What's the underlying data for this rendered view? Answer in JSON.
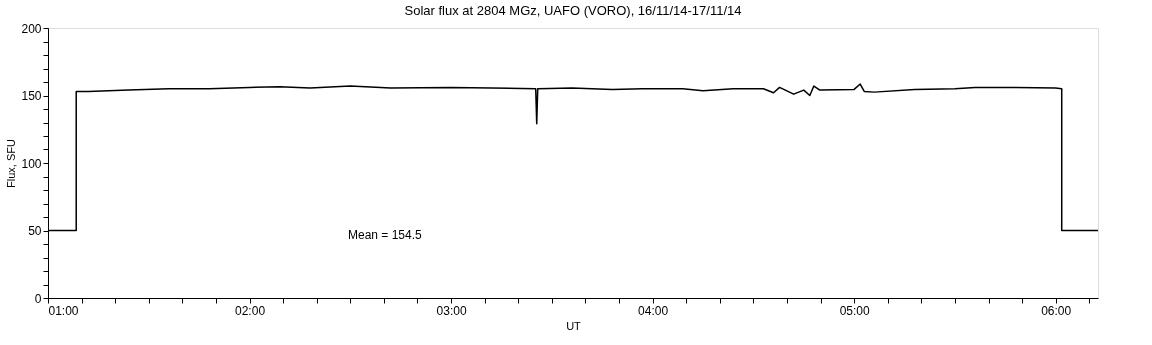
{
  "chart_data": {
    "type": "line",
    "title": "Solar flux at 2804 MGz, UAFO (VORO),  16/11/14-17/11/14",
    "xlabel": "UT",
    "ylabel": "Flux, SFU",
    "annotations": [
      "Mean =  154.5"
    ],
    "x": [
      1.0,
      1.14,
      1.14,
      1.2,
      1.4,
      1.6,
      1.8,
      2.0,
      2.15,
      2.3,
      2.5,
      2.7,
      3.0,
      3.2,
      3.42,
      3.425,
      3.43,
      3.6,
      3.8,
      3.95,
      4.15,
      4.25,
      4.4,
      4.55,
      4.6,
      4.63,
      4.7,
      4.75,
      4.78,
      4.8,
      4.83,
      5.0,
      5.03,
      5.05,
      5.1,
      5.3,
      5.5,
      5.6,
      5.8,
      6.0,
      6.03,
      6.03,
      6.21
    ],
    "series": [
      {
        "color": "#000000",
        "values": [
          50,
          50,
          153,
          153,
          154,
          155,
          155,
          156,
          156.5,
          155.5,
          157,
          155.5,
          156,
          155.5,
          155,
          129,
          155,
          155.5,
          154.5,
          155,
          155,
          153.5,
          155,
          155,
          152,
          156,
          151,
          154,
          150,
          157,
          154,
          154.5,
          158.5,
          153,
          152.5,
          154.5,
          155,
          156,
          156,
          155.5,
          155,
          50,
          50
        ]
      }
    ],
    "xlim": [
      1.0,
      6.21
    ],
    "xticks": [
      {
        "value": 1,
        "label": "01:00"
      },
      {
        "value": 1.1667,
        "label": null
      },
      {
        "value": 1.3333,
        "label": null
      },
      {
        "value": 1.5,
        "label": null
      },
      {
        "value": 1.6667,
        "label": null
      },
      {
        "value": 1.8333,
        "label": null
      },
      {
        "value": 2,
        "label": "02:00"
      },
      {
        "value": 2.1667,
        "label": null
      },
      {
        "value": 2.3333,
        "label": null
      },
      {
        "value": 2.5,
        "label": null
      },
      {
        "value": 2.6667,
        "label": null
      },
      {
        "value": 2.8333,
        "label": null
      },
      {
        "value": 3,
        "label": "03:00"
      },
      {
        "value": 3.1667,
        "label": null
      },
      {
        "value": 3.3333,
        "label": null
      },
      {
        "value": 3.5,
        "label": null
      },
      {
        "value": 3.6667,
        "label": null
      },
      {
        "value": 3.8333,
        "label": null
      },
      {
        "value": 4,
        "label": "04:00"
      },
      {
        "value": 4.1667,
        "label": null
      },
      {
        "value": 4.3333,
        "label": null
      },
      {
        "value": 4.5,
        "label": null
      },
      {
        "value": 4.6667,
        "label": null
      },
      {
        "value": 4.8333,
        "label": null
      },
      {
        "value": 5,
        "label": "05:00"
      },
      {
        "value": 5.1667,
        "label": null
      },
      {
        "value": 5.3333,
        "label": null
      },
      {
        "value": 5.5,
        "label": null
      },
      {
        "value": 5.6667,
        "label": null
      },
      {
        "value": 5.8333,
        "label": null
      },
      {
        "value": 6,
        "label": "06:00"
      },
      {
        "value": 6.1667,
        "label": null
      }
    ],
    "ylim": [
      0,
      200
    ],
    "yticks": [
      0,
      {
        "value": 10,
        "label": null
      },
      {
        "value": 20,
        "label": null
      },
      {
        "value": 30,
        "label": null
      },
      {
        "value": 40,
        "label": null
      },
      50,
      {
        "value": 60,
        "label": null
      },
      {
        "value": 70,
        "label": null
      },
      {
        "value": 80,
        "label": null
      },
      {
        "value": 90,
        "label": null
      },
      100,
      {
        "value": 110,
        "label": null
      },
      {
        "value": 120,
        "label": null
      },
      {
        "value": 130,
        "label": null
      },
      {
        "value": 140,
        "label": null
      },
      150,
      {
        "value": 160,
        "label": null
      },
      {
        "value": 170,
        "label": null
      },
      {
        "value": 180,
        "label": null
      },
      {
        "value": 190,
        "label": null
      },
      200
    ],
    "grid": false,
    "marker": "none",
    "line_style": "solid"
  }
}
